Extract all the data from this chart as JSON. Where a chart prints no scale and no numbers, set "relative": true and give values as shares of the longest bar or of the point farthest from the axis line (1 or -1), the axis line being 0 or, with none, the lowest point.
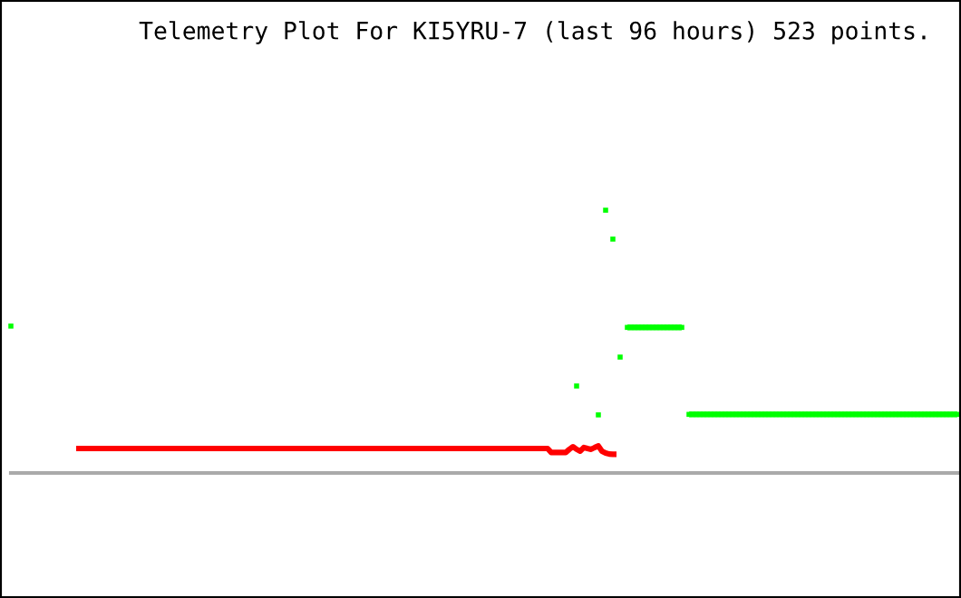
{
  "chart_data": {
    "type": "line",
    "title": "Telemetry Plot For KI5YRU-7 (last 96 hours) 523 points.",
    "relative": true,
    "categories": [
      null,
      null,
      null,
      null,
      null,
      null,
      null,
      null,
      null,
      null,
      null,
      null,
      null,
      null,
      null,
      null,
      null,
      null,
      null,
      null,
      null,
      null,
      null,
      null,
      null,
      null,
      null,
      null,
      null,
      null,
      null,
      null,
      null,
      null,
      null,
      null,
      null,
      null,
      null,
      null,
      null,
      null,
      null,
      null,
      null,
      null,
      null,
      null,
      null,
      null,
      null,
      null,
      null,
      null,
      null,
      null,
      null,
      null,
      null,
      null,
      null,
      null,
      null,
      null,
      null,
      null,
      null,
      null,
      null,
      null,
      null,
      null,
      null,
      null,
      null,
      null,
      null,
      null,
      null,
      null,
      null,
      null,
      null,
      null,
      null,
      null,
      null,
      null,
      null,
      null,
      null,
      null,
      null,
      null,
      null,
      null,
      null,
      null,
      null,
      null,
      null,
      null,
      null,
      null,
      null,
      null,
      null,
      null,
      null,
      null,
      null,
      null,
      null,
      null,
      null,
      null,
      null,
      null,
      null,
      null,
      null,
      null,
      null,
      null,
      null,
      null,
      null,
      null,
      null,
      null,
      null,
      null,
      null,
      null,
      null,
      null,
      null,
      null,
      null,
      null,
      null,
      null,
      null,
      null,
      null,
      null,
      null,
      null,
      null,
      null,
      null,
      null,
      null,
      null,
      null,
      null,
      null,
      null,
      null,
      null,
      null,
      null,
      null,
      null,
      null,
      null,
      null,
      null,
      null,
      null,
      null,
      null,
      null,
      null,
      null,
      null,
      null,
      null,
      null,
      null,
      null,
      null,
      null,
      null,
      null,
      null,
      null,
      null,
      null,
      null,
      null,
      null,
      null,
      null,
      null,
      null,
      null,
      null,
      null,
      null,
      null,
      null,
      null,
      null,
      null,
      null,
      null,
      null,
      null,
      null,
      null,
      null,
      null,
      null,
      null,
      null,
      null,
      null,
      null,
      null,
      null,
      null,
      null,
      null,
      null,
      null,
      null,
      null,
      null,
      null,
      null,
      null,
      null,
      null,
      null,
      null,
      null,
      null,
      null,
      null,
      null,
      null,
      null,
      null,
      null,
      null,
      null,
      null,
      null,
      null,
      null,
      null,
      null,
      null,
      null,
      null,
      null,
      null,
      null,
      null,
      null,
      null
    ],
    "series": [
      {
        "color": "#ff0000",
        "marker": "none",
        "values": [
          null,
          null,
          null,
          null,
          null,
          null,
          null,
          null,
          null,
          null,
          null,
          null,
          null,
          null,
          null,
          null,
          null,
          null,
          0.093,
          0.093,
          0.093,
          0.093,
          0.093,
          0.093,
          0.093,
          0.093,
          0.093,
          0.093,
          0.093,
          0.093,
          0.093,
          0.093,
          0.093,
          0.093,
          0.093,
          0.093,
          0.093,
          0.093,
          0.093,
          0.093,
          0.093,
          0.093,
          0.093,
          0.093,
          0.093,
          0.093,
          0.093,
          0.093,
          0.093,
          0.093,
          0.093,
          0.093,
          0.093,
          0.093,
          0.093,
          0.093,
          0.093,
          0.093,
          0.093,
          0.093,
          0.093,
          0.093,
          0.093,
          0.093,
          0.093,
          0.093,
          0.093,
          0.093,
          0.093,
          0.093,
          0.093,
          0.093,
          0.093,
          0.093,
          0.093,
          0.093,
          0.093,
          0.093,
          0.093,
          0.093,
          0.093,
          0.093,
          0.093,
          0.093,
          0.093,
          0.093,
          0.093,
          0.093,
          0.093,
          0.093,
          0.093,
          0.093,
          0.093,
          0.093,
          0.093,
          0.093,
          0.093,
          0.093,
          0.093,
          0.093,
          0.093,
          0.093,
          0.093,
          0.093,
          0.093,
          0.093,
          0.093,
          0.093,
          0.093,
          0.093,
          0.093,
          0.093,
          0.093,
          0.093,
          0.093,
          0.093,
          0.093,
          0.093,
          0.093,
          0.093,
          0.093,
          0.093,
          0.093,
          0.093,
          0.093,
          0.093,
          0.093,
          0.093,
          0.093,
          0.093,
          0.093,
          0.093,
          0.093,
          0.093,
          0.093,
          0.093,
          0.093,
          0.093,
          0.093,
          0.093,
          0.093,
          0.093,
          0.093,
          0.093,
          0.093,
          0.093,
          0.093,
          0.093,
          0.093,
          0.078,
          0.078,
          0.078,
          0.078,
          0.078,
          0.09,
          0.1,
          0.09,
          0.083,
          0.097,
          0.093,
          0.09,
          0.097,
          0.103,
          0.083,
          0.076,
          0.072,
          0.071,
          0.071,
          null,
          null,
          null,
          null,
          null,
          null,
          null,
          null,
          null,
          null,
          null,
          null,
          null,
          null,
          null,
          null,
          null,
          null,
          null,
          null,
          null,
          null,
          null,
          null,
          null,
          null,
          null,
          null,
          null,
          null,
          null,
          null,
          null,
          null,
          null,
          null,
          null,
          null,
          null,
          null,
          null,
          null,
          null,
          null,
          null,
          null,
          null,
          null,
          null,
          null,
          null,
          null,
          null,
          null,
          null,
          null,
          null,
          null,
          null,
          null,
          null,
          null,
          null,
          null,
          null,
          null,
          null,
          null,
          null,
          null,
          null,
          null,
          null,
          null,
          null,
          null,
          null,
          null,
          null,
          null,
          null,
          null,
          null,
          null,
          null,
          null,
          null,
          null,
          null,
          null,
          null,
          null,
          null,
          null
        ]
      },
      {
        "color": "#00ff00",
        "marker": "square",
        "values": [
          0.559,
          null,
          null,
          null,
          null,
          null,
          null,
          null,
          null,
          null,
          null,
          null,
          null,
          null,
          null,
          null,
          null,
          null,
          null,
          null,
          null,
          null,
          null,
          null,
          null,
          null,
          null,
          null,
          null,
          null,
          null,
          null,
          null,
          null,
          null,
          null,
          null,
          null,
          null,
          null,
          null,
          null,
          null,
          null,
          null,
          null,
          null,
          null,
          null,
          null,
          null,
          null,
          null,
          null,
          null,
          null,
          null,
          null,
          null,
          null,
          null,
          null,
          null,
          null,
          null,
          null,
          null,
          null,
          null,
          null,
          null,
          null,
          null,
          null,
          null,
          null,
          null,
          null,
          null,
          null,
          null,
          null,
          null,
          null,
          null,
          null,
          null,
          null,
          null,
          null,
          null,
          null,
          null,
          null,
          null,
          null,
          null,
          null,
          null,
          null,
          null,
          null,
          null,
          null,
          null,
          null,
          null,
          null,
          null,
          null,
          null,
          null,
          null,
          null,
          null,
          null,
          null,
          null,
          null,
          null,
          null,
          null,
          null,
          null,
          null,
          null,
          null,
          null,
          null,
          null,
          null,
          null,
          null,
          null,
          null,
          null,
          null,
          null,
          null,
          null,
          null,
          null,
          null,
          null,
          null,
          null,
          null,
          null,
          null,
          null,
          null,
          null,
          null,
          null,
          null,
          null,
          0.331,
          null,
          null,
          null,
          null,
          null,
          0.221,
          null,
          1.0,
          null,
          0.89,
          null,
          0.441,
          null,
          0.554,
          0.554,
          0.554,
          0.554,
          0.554,
          0.554,
          0.554,
          0.554,
          0.554,
          0.554,
          0.554,
          0.554,
          0.554,
          0.554,
          0.554,
          0.554,
          null,
          0.223,
          0.223,
          0.223,
          0.223,
          0.223,
          0.223,
          0.223,
          0.223,
          0.223,
          0.223,
          0.223,
          0.223,
          0.223,
          0.223,
          0.223,
          0.223,
          0.223,
          0.223,
          0.223,
          0.223,
          0.223,
          0.223,
          0.223,
          0.223,
          0.223,
          0.223,
          0.223,
          0.223,
          0.223,
          0.223,
          0.223,
          0.223,
          0.223,
          0.223,
          0.223,
          0.223,
          0.223,
          0.223,
          0.223,
          0.223,
          0.223,
          0.223,
          0.223,
          0.223,
          0.223,
          0.223,
          0.223,
          0.223,
          0.223,
          0.223,
          0.223,
          0.223,
          0.223,
          0.223,
          0.223,
          0.223,
          0.223,
          0.223,
          0.223,
          0.223,
          0.223,
          0.223,
          0.223,
          0.223,
          0.223,
          0.223,
          0.223,
          0.223,
          0.223,
          0.223,
          0.223,
          0.223,
          0.223,
          0.223,
          0.223
        ]
      }
    ]
  }
}
